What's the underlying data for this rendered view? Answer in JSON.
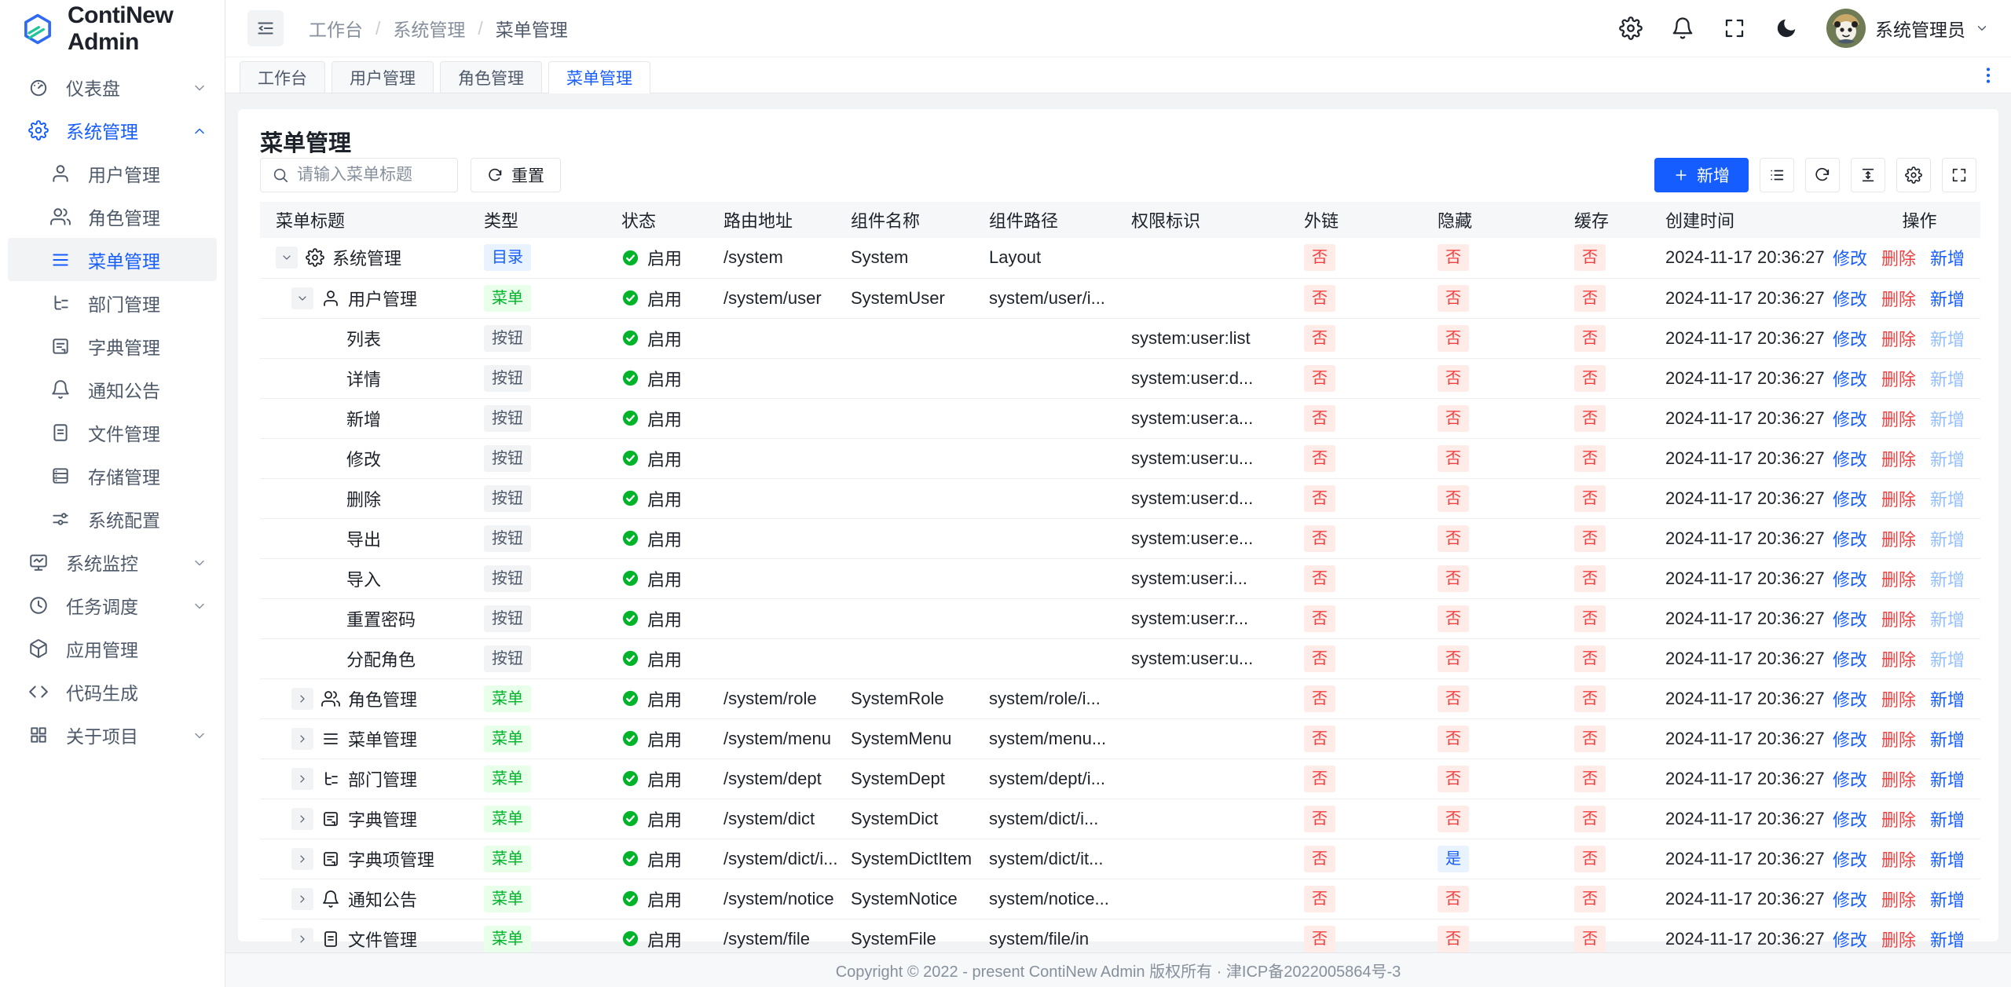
{
  "app": {
    "name": "ContiNew Admin",
    "footer": "Copyright © 2022 - present ContiNew Admin 版权所有 · 津ICP备2022005864号-3"
  },
  "colors": {
    "primary": "#165dff",
    "success": "#00b42a",
    "danger": "#f53f3f",
    "badge_dir_bg": "#e8f3ff",
    "badge_menu_bg": "#e8ffea",
    "badge_btn_bg": "#f2f3f5",
    "badge_no_bg": "#ffece8",
    "badge_yes_bg": "#e8f3ff"
  },
  "sidebar": {
    "items": [
      {
        "key": "dashboard",
        "label": "仪表盘",
        "icon": "dashboard",
        "level": 0,
        "chevron": "down",
        "active": false,
        "selected": false
      },
      {
        "key": "system",
        "label": "系统管理",
        "icon": "gear",
        "level": 0,
        "chevron": "up",
        "active": true,
        "selected": false
      },
      {
        "key": "user-mgmt",
        "label": "用户管理",
        "icon": "user",
        "level": 1,
        "chevron": "",
        "active": false,
        "selected": false
      },
      {
        "key": "role-mgmt",
        "label": "角色管理",
        "icon": "users",
        "level": 1,
        "chevron": "",
        "active": false,
        "selected": false
      },
      {
        "key": "menu-mgmt",
        "label": "菜单管理",
        "icon": "menu",
        "level": 1,
        "chevron": "",
        "active": false,
        "selected": true
      },
      {
        "key": "dept-mgmt",
        "label": "部门管理",
        "icon": "tree",
        "level": 1,
        "chevron": "",
        "active": false,
        "selected": false
      },
      {
        "key": "dict-mgmt",
        "label": "字典管理",
        "icon": "dict",
        "level": 1,
        "chevron": "",
        "active": false,
        "selected": false
      },
      {
        "key": "notice",
        "label": "通知公告",
        "icon": "bell",
        "level": 1,
        "chevron": "",
        "active": false,
        "selected": false
      },
      {
        "key": "file-mgmt",
        "label": "文件管理",
        "icon": "file",
        "level": 1,
        "chevron": "",
        "active": false,
        "selected": false
      },
      {
        "key": "storage-mgmt",
        "label": "存储管理",
        "icon": "storage",
        "level": 1,
        "chevron": "",
        "active": false,
        "selected": false
      },
      {
        "key": "system-config",
        "label": "系统配置",
        "icon": "sliders",
        "level": 1,
        "chevron": "",
        "active": false,
        "selected": false
      },
      {
        "key": "monitor",
        "label": "系统监控",
        "icon": "monitor",
        "level": 0,
        "chevron": "down",
        "active": false,
        "selected": false
      },
      {
        "key": "schedule",
        "label": "任务调度",
        "icon": "clock",
        "level": 0,
        "chevron": "down",
        "active": false,
        "selected": false
      },
      {
        "key": "app-mgmt",
        "label": "应用管理",
        "icon": "cube",
        "level": 0,
        "chevron": "",
        "active": false,
        "selected": false
      },
      {
        "key": "codegen",
        "label": "代码生成",
        "icon": "code",
        "level": 0,
        "chevron": "",
        "active": false,
        "selected": false
      },
      {
        "key": "about",
        "label": "关于项目",
        "icon": "grid",
        "level": 0,
        "chevron": "down",
        "active": false,
        "selected": false
      }
    ]
  },
  "header": {
    "breadcrumb": [
      "工作台",
      "系统管理",
      "菜单管理"
    ],
    "username": "系统管理员"
  },
  "tabs": {
    "items": [
      {
        "label": "工作台",
        "active": false
      },
      {
        "label": "用户管理",
        "active": false
      },
      {
        "label": "角色管理",
        "active": false
      },
      {
        "label": "菜单管理",
        "active": true
      }
    ]
  },
  "page": {
    "title": "菜单管理",
    "search_placeholder": "请输入菜单标题",
    "reset_label": "重置",
    "add_label": "新增"
  },
  "table": {
    "columns": [
      "菜单标题",
      "类型",
      "状态",
      "路由地址",
      "组件名称",
      "组件路径",
      "权限标识",
      "外链",
      "隐藏",
      "缓存",
      "创建时间",
      "操作"
    ],
    "actions": {
      "edit": "修改",
      "delete": "删除",
      "add": "新增"
    },
    "rows": [
      {
        "level": 0,
        "chevron": "down",
        "icon": "gear",
        "title": "系统管理",
        "type": "目录",
        "status": "启用",
        "route": "/system",
        "component": "System",
        "path": "Layout",
        "perm": "",
        "external": "否",
        "hidden": "否",
        "cache": "否",
        "created": "2024-11-17 20:36:27",
        "add_disabled": false
      },
      {
        "level": 1,
        "chevron": "down",
        "icon": "user",
        "title": "用户管理",
        "type": "菜单",
        "status": "启用",
        "route": "/system/user",
        "component": "SystemUser",
        "path": "system/user/i...",
        "perm": "",
        "external": "否",
        "hidden": "否",
        "cache": "否",
        "created": "2024-11-17 20:36:27",
        "add_disabled": false
      },
      {
        "level": 2,
        "chevron": "",
        "icon": "",
        "title": "列表",
        "type": "按钮",
        "status": "启用",
        "route": "",
        "component": "",
        "path": "",
        "perm": "system:user:list",
        "external": "否",
        "hidden": "否",
        "cache": "否",
        "created": "2024-11-17 20:36:27",
        "add_disabled": true
      },
      {
        "level": 2,
        "chevron": "",
        "icon": "",
        "title": "详情",
        "type": "按钮",
        "status": "启用",
        "route": "",
        "component": "",
        "path": "",
        "perm": "system:user:d...",
        "external": "否",
        "hidden": "否",
        "cache": "否",
        "created": "2024-11-17 20:36:27",
        "add_disabled": true
      },
      {
        "level": 2,
        "chevron": "",
        "icon": "",
        "title": "新增",
        "type": "按钮",
        "status": "启用",
        "route": "",
        "component": "",
        "path": "",
        "perm": "system:user:a...",
        "external": "否",
        "hidden": "否",
        "cache": "否",
        "created": "2024-11-17 20:36:27",
        "add_disabled": true
      },
      {
        "level": 2,
        "chevron": "",
        "icon": "",
        "title": "修改",
        "type": "按钮",
        "status": "启用",
        "route": "",
        "component": "",
        "path": "",
        "perm": "system:user:u...",
        "external": "否",
        "hidden": "否",
        "cache": "否",
        "created": "2024-11-17 20:36:27",
        "add_disabled": true
      },
      {
        "level": 2,
        "chevron": "",
        "icon": "",
        "title": "删除",
        "type": "按钮",
        "status": "启用",
        "route": "",
        "component": "",
        "path": "",
        "perm": "system:user:d...",
        "external": "否",
        "hidden": "否",
        "cache": "否",
        "created": "2024-11-17 20:36:27",
        "add_disabled": true
      },
      {
        "level": 2,
        "chevron": "",
        "icon": "",
        "title": "导出",
        "type": "按钮",
        "status": "启用",
        "route": "",
        "component": "",
        "path": "",
        "perm": "system:user:e...",
        "external": "否",
        "hidden": "否",
        "cache": "否",
        "created": "2024-11-17 20:36:27",
        "add_disabled": true
      },
      {
        "level": 2,
        "chevron": "",
        "icon": "",
        "title": "导入",
        "type": "按钮",
        "status": "启用",
        "route": "",
        "component": "",
        "path": "",
        "perm": "system:user:i...",
        "external": "否",
        "hidden": "否",
        "cache": "否",
        "created": "2024-11-17 20:36:27",
        "add_disabled": true
      },
      {
        "level": 2,
        "chevron": "",
        "icon": "",
        "title": "重置密码",
        "type": "按钮",
        "status": "启用",
        "route": "",
        "component": "",
        "path": "",
        "perm": "system:user:r...",
        "external": "否",
        "hidden": "否",
        "cache": "否",
        "created": "2024-11-17 20:36:27",
        "add_disabled": true
      },
      {
        "level": 2,
        "chevron": "",
        "icon": "",
        "title": "分配角色",
        "type": "按钮",
        "status": "启用",
        "route": "",
        "component": "",
        "path": "",
        "perm": "system:user:u...",
        "external": "否",
        "hidden": "否",
        "cache": "否",
        "created": "2024-11-17 20:36:27",
        "add_disabled": true
      },
      {
        "level": 1,
        "chevron": "right",
        "icon": "users",
        "title": "角色管理",
        "type": "菜单",
        "status": "启用",
        "route": "/system/role",
        "component": "SystemRole",
        "path": "system/role/i...",
        "perm": "",
        "external": "否",
        "hidden": "否",
        "cache": "否",
        "created": "2024-11-17 20:36:27",
        "add_disabled": false
      },
      {
        "level": 1,
        "chevron": "right",
        "icon": "menu",
        "title": "菜单管理",
        "type": "菜单",
        "status": "启用",
        "route": "/system/menu",
        "component": "SystemMenu",
        "path": "system/menu...",
        "perm": "",
        "external": "否",
        "hidden": "否",
        "cache": "否",
        "created": "2024-11-17 20:36:27",
        "add_disabled": false
      },
      {
        "level": 1,
        "chevron": "right",
        "icon": "tree",
        "title": "部门管理",
        "type": "菜单",
        "status": "启用",
        "route": "/system/dept",
        "component": "SystemDept",
        "path": "system/dept/i...",
        "perm": "",
        "external": "否",
        "hidden": "否",
        "cache": "否",
        "created": "2024-11-17 20:36:27",
        "add_disabled": false
      },
      {
        "level": 1,
        "chevron": "right",
        "icon": "dict",
        "title": "字典管理",
        "type": "菜单",
        "status": "启用",
        "route": "/system/dict",
        "component": "SystemDict",
        "path": "system/dict/i...",
        "perm": "",
        "external": "否",
        "hidden": "否",
        "cache": "否",
        "created": "2024-11-17 20:36:27",
        "add_disabled": false
      },
      {
        "level": 1,
        "chevron": "right",
        "icon": "dict",
        "title": "字典项管理",
        "type": "菜单",
        "status": "启用",
        "route": "/system/dict/i...",
        "component": "SystemDictItem",
        "path": "system/dict/it...",
        "perm": "",
        "external": "否",
        "hidden": "是",
        "cache": "否",
        "created": "2024-11-17 20:36:27",
        "add_disabled": false
      },
      {
        "level": 1,
        "chevron": "right",
        "icon": "bell",
        "title": "通知公告",
        "type": "菜单",
        "status": "启用",
        "route": "/system/notice",
        "component": "SystemNotice",
        "path": "system/notice...",
        "perm": "",
        "external": "否",
        "hidden": "否",
        "cache": "否",
        "created": "2024-11-17 20:36:27",
        "add_disabled": false
      },
      {
        "level": 1,
        "chevron": "right",
        "icon": "file",
        "title": "文件管理",
        "type": "菜单",
        "status": "启用",
        "route": "/system/file",
        "component": "SystemFile",
        "path": "system/file/in",
        "perm": "",
        "external": "否",
        "hidden": "否",
        "cache": "否",
        "created": "2024-11-17 20:36:27",
        "add_disabled": false
      }
    ]
  }
}
